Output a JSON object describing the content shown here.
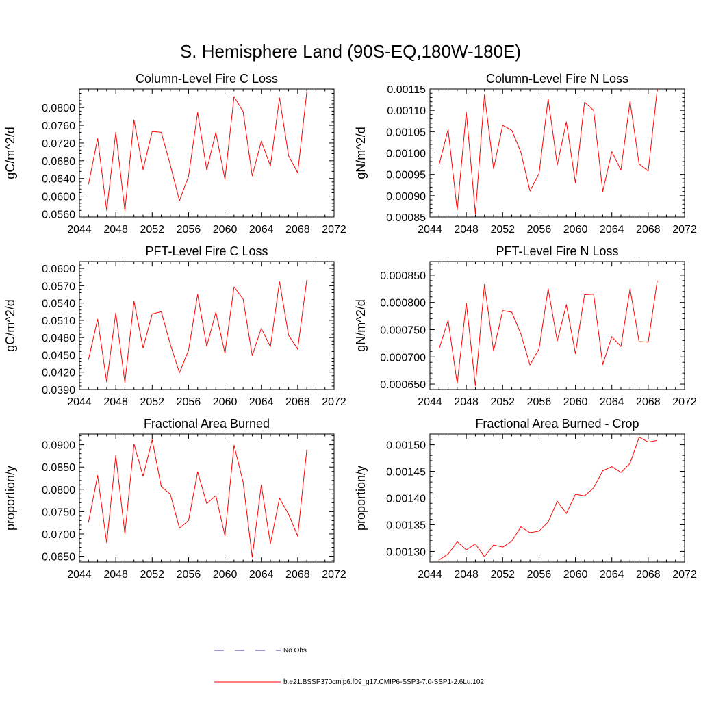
{
  "title": "S. Hemisphere Land (90S-EQ,180W-180E)",
  "legend": [
    {
      "label": "No Obs",
      "color": "#3333aa",
      "dash": true
    },
    {
      "label": "b.e21.BSSP370cmip6.f09_g17.CMIP6-SSP3-7.0-SSP1-2.6Lu.102",
      "color": "#ff0000",
      "dash": false
    }
  ],
  "chart_data": [
    {
      "type": "line",
      "title": "Column-Level Fire C Loss",
      "ylabel": "gC/m^2/d",
      "xlim": [
        2044,
        2072
      ],
      "ylim": [
        0.0553,
        0.0842
      ],
      "xticks": [
        "2044",
        "2048",
        "2052",
        "2056",
        "2060",
        "2064",
        "2068",
        "2072"
      ],
      "yticks": [
        "0.0560",
        "0.0600",
        "0.0640",
        "0.0680",
        "0.0720",
        "0.0760",
        "0.0800"
      ],
      "ytick_values": [
        0.056,
        0.06,
        0.064,
        0.068,
        0.072,
        0.076,
        0.08
      ],
      "series": [
        {
          "color": "#ff0000",
          "x": [
            2045,
            2046,
            2047,
            2048,
            2049,
            2050,
            2051,
            2052,
            2053,
            2054,
            2055,
            2056,
            2057,
            2058,
            2059,
            2060,
            2061,
            2062,
            2063,
            2064,
            2065,
            2066,
            2067,
            2068,
            2069
          ],
          "y": [
            0.0627,
            0.073,
            0.0568,
            0.0744,
            0.0567,
            0.0772,
            0.066,
            0.0746,
            0.0744,
            0.067,
            0.059,
            0.0645,
            0.0789,
            0.0659,
            0.0744,
            0.0638,
            0.0825,
            0.0791,
            0.0646,
            0.0724,
            0.0668,
            0.0822,
            0.0691,
            0.0653,
            0.0835
          ]
        }
      ]
    },
    {
      "type": "line",
      "title": "Column-Level Fire N Loss",
      "ylabel": "gN/m^2/d",
      "xlim": [
        2044,
        2072
      ],
      "ylim": [
        0.00085,
        0.00115
      ],
      "xticks": [
        "2044",
        "2048",
        "2052",
        "2056",
        "2060",
        "2064",
        "2068",
        "2072"
      ],
      "yticks": [
        "0.00085",
        "0.00090",
        "0.00095",
        "0.00100",
        "0.00105",
        "0.00110",
        "0.00115"
      ],
      "ytick_values": [
        0.00085,
        0.0009,
        0.00095,
        0.001,
        0.00105,
        0.0011,
        0.00115
      ],
      "series": [
        {
          "color": "#ff0000",
          "x": [
            2045,
            2046,
            2047,
            2048,
            2049,
            2050,
            2051,
            2052,
            2053,
            2054,
            2055,
            2056,
            2057,
            2058,
            2059,
            2060,
            2061,
            2062,
            2063,
            2064,
            2065,
            2066,
            2067,
            2068,
            2069
          ],
          "y": [
            0.000972,
            0.001055,
            0.000866,
            0.001096,
            0.000858,
            0.001137,
            0.000963,
            0.001065,
            0.001053,
            0.001002,
            0.000911,
            0.000952,
            0.001127,
            0.000972,
            0.001073,
            0.00093,
            0.001119,
            0.0011,
            0.00091,
            0.001003,
            0.00096,
            0.001121,
            0.000974,
            0.000958,
            0.00115
          ]
        }
      ]
    },
    {
      "type": "line",
      "title": "PFT-Level Fire C Loss",
      "ylabel": "gC/m^2/d",
      "xlim": [
        2044,
        2072
      ],
      "ylim": [
        0.039,
        0.0612
      ],
      "xticks": [
        "2044",
        "2048",
        "2052",
        "2056",
        "2060",
        "2064",
        "2068",
        "2072"
      ],
      "yticks": [
        "0.0390",
        "0.0420",
        "0.0450",
        "0.0480",
        "0.0510",
        "0.0540",
        "0.0570",
        "0.0600"
      ],
      "ytick_values": [
        0.039,
        0.042,
        0.045,
        0.048,
        0.051,
        0.054,
        0.057,
        0.06
      ],
      "series": [
        {
          "color": "#ff0000",
          "x": [
            2045,
            2046,
            2047,
            2048,
            2049,
            2050,
            2051,
            2052,
            2053,
            2054,
            2055,
            2056,
            2057,
            2058,
            2059,
            2060,
            2061,
            2062,
            2063,
            2064,
            2065,
            2066,
            2067,
            2068,
            2069
          ],
          "y": [
            0.0442,
            0.0512,
            0.0403,
            0.0523,
            0.0402,
            0.0543,
            0.0462,
            0.0521,
            0.0525,
            0.0468,
            0.0419,
            0.0458,
            0.0555,
            0.0465,
            0.0524,
            0.0453,
            0.0568,
            0.0547,
            0.0449,
            0.0496,
            0.0464,
            0.0577,
            0.0484,
            0.046,
            0.058
          ]
        }
      ]
    },
    {
      "type": "line",
      "title": "PFT-Level Fire N Loss",
      "ylabel": "gN/m^2/d",
      "xlim": [
        2044,
        2072
      ],
      "ylim": [
        0.00064,
        0.000875
      ],
      "xticks": [
        "2044",
        "2048",
        "2052",
        "2056",
        "2060",
        "2064",
        "2068",
        "2072"
      ],
      "yticks": [
        "0.000650",
        "0.000700",
        "0.000750",
        "0.000800",
        "0.000850"
      ],
      "ytick_values": [
        0.00065,
        0.0007,
        0.00075,
        0.0008,
        0.00085
      ],
      "series": [
        {
          "color": "#ff0000",
          "x": [
            2045,
            2046,
            2047,
            2048,
            2049,
            2050,
            2051,
            2052,
            2053,
            2054,
            2055,
            2056,
            2057,
            2058,
            2059,
            2060,
            2061,
            2062,
            2063,
            2064,
            2065,
            2066,
            2067,
            2068,
            2069
          ],
          "y": [
            0.000714,
            0.000767,
            0.000651,
            0.000799,
            0.000647,
            0.000833,
            0.000711,
            0.000785,
            0.000782,
            0.000742,
            0.000685,
            0.000715,
            0.000825,
            0.000729,
            0.000796,
            0.000706,
            0.000814,
            0.000815,
            0.000686,
            0.000737,
            0.000719,
            0.000825,
            0.000728,
            0.000727,
            0.00084
          ]
        }
      ]
    },
    {
      "type": "line",
      "title": "Fractional Area Burned",
      "ylabel": "proportion/y",
      "xlim": [
        2044,
        2072
      ],
      "ylim": [
        0.0637,
        0.0924
      ],
      "xticks": [
        "2044",
        "2048",
        "2052",
        "2056",
        "2060",
        "2064",
        "2068",
        "2072"
      ],
      "yticks": [
        "0.0650",
        "0.0700",
        "0.0750",
        "0.0800",
        "0.0850",
        "0.0900"
      ],
      "ytick_values": [
        0.065,
        0.07,
        0.075,
        0.08,
        0.085,
        0.09
      ],
      "series": [
        {
          "color": "#ff0000",
          "x": [
            2045,
            2046,
            2047,
            2048,
            2049,
            2050,
            2051,
            2052,
            2053,
            2054,
            2055,
            2056,
            2057,
            2058,
            2059,
            2060,
            2061,
            2062,
            2063,
            2064,
            2065,
            2066,
            2067,
            2068,
            2069
          ],
          "y": [
            0.0726,
            0.0831,
            0.068,
            0.0876,
            0.07,
            0.0902,
            0.0829,
            0.0911,
            0.0806,
            0.0789,
            0.0713,
            0.073,
            0.0839,
            0.0768,
            0.0786,
            0.0696,
            0.0899,
            0.0816,
            0.0648,
            0.081,
            0.0678,
            0.078,
            0.0744,
            0.0695,
            0.0889
          ]
        }
      ]
    },
    {
      "type": "line",
      "title": "Fractional Area Burned - Crop",
      "ylabel": "proportion/y",
      "xlim": [
        2044,
        2072
      ],
      "ylim": [
        0.00128,
        0.00152
      ],
      "xticks": [
        "2044",
        "2048",
        "2052",
        "2056",
        "2060",
        "2064",
        "2068",
        "2072"
      ],
      "yticks": [
        "0.00130",
        "0.00135",
        "0.00140",
        "0.00145",
        "0.00150"
      ],
      "ytick_values": [
        0.0013,
        0.00135,
        0.0014,
        0.00145,
        0.0015
      ],
      "series": [
        {
          "color": "#ff0000",
          "x": [
            2045,
            2046,
            2047,
            2048,
            2049,
            2050,
            2051,
            2052,
            2053,
            2054,
            2055,
            2056,
            2057,
            2058,
            2059,
            2060,
            2061,
            2062,
            2063,
            2064,
            2065,
            2066,
            2067,
            2068,
            2069
          ],
          "y": [
            0.001284,
            0.001295,
            0.001318,
            0.001303,
            0.001314,
            0.00129,
            0.001312,
            0.001308,
            0.001319,
            0.001346,
            0.001335,
            0.001338,
            0.001355,
            0.001394,
            0.001371,
            0.001407,
            0.001404,
            0.001419,
            0.001451,
            0.001459,
            0.001448,
            0.001465,
            0.001514,
            0.001505,
            0.001508
          ]
        }
      ]
    }
  ]
}
